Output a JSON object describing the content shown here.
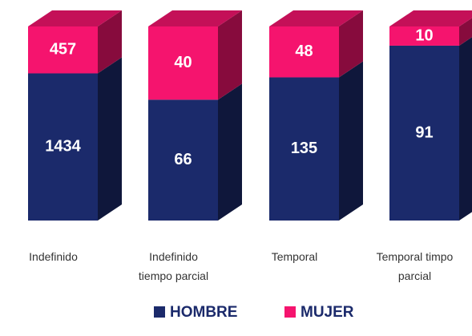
{
  "chart_data": {
    "type": "bar",
    "stacking": "percent",
    "three_d": true,
    "categories": [
      "Indefinido",
      "Indefinido tiempo parcial",
      "Temporal",
      "Temporal timpo parcial"
    ],
    "series": [
      {
        "name": "HOMBRE",
        "color": "#1b2a6b",
        "values": [
          1434,
          66,
          135,
          91
        ]
      },
      {
        "name": "MUJER",
        "color": "#f5146e",
        "values": [
          457,
          40,
          48,
          10
        ]
      }
    ],
    "legend": "bottom"
  }
}
